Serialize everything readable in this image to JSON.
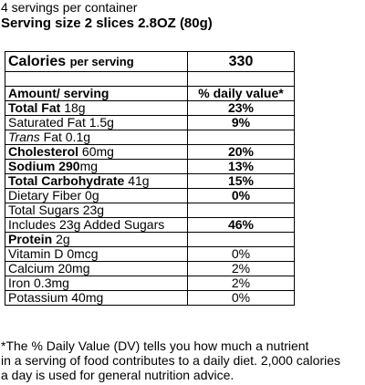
{
  "header": {
    "servings": "4 servings per container",
    "serving_size": "Serving size 2 slices 2.8OZ (80g)"
  },
  "calories": {
    "label": "Calories",
    "unit": "per serving",
    "value": "330"
  },
  "columns": {
    "amount": "Amount/ serving",
    "dv": "% daily value*"
  },
  "rows": [
    {
      "name": "Total Fat",
      "amount": "18g",
      "dv": "23%"
    },
    {
      "name": "Saturated Fat",
      "amount": "1.5g",
      "dv": "9%"
    },
    {
      "name_italic": "Trans",
      "name": "Fat",
      "amount": "0.1g",
      "dv": ""
    },
    {
      "name": "Cholesterol",
      "amount": "60mg",
      "dv": "20%"
    },
    {
      "name": "Sodium 290",
      "amount": "mg",
      "dv": "13%"
    },
    {
      "name": "Total Carbohydrate",
      "amount": "41g",
      "dv": "15%"
    },
    {
      "name": "Dietary Fiber",
      "amount": "0g",
      "dv": "0%"
    },
    {
      "name": "Total Sugars",
      "amount": "23g",
      "dv": ""
    },
    {
      "name": "Includes 23g Added Sugars",
      "amount": "",
      "dv": "46%"
    },
    {
      "name": "Protein",
      "amount": "2g",
      "dv": ""
    },
    {
      "name": "Vitamin D",
      "amount": "0mcg",
      "dv": "0%"
    },
    {
      "name": "Calcium",
      "amount": "20mg",
      "dv": "2%"
    },
    {
      "name": "Iron",
      "amount": "0.3mg",
      "dv": "2%"
    },
    {
      "name": "Potassium",
      "amount": "40mg",
      "dv": "0%"
    }
  ],
  "footnote": {
    "line1": "*The % Daily Value (DV) tells you how much a nutrient",
    "line2": "in a serving of food contributes to a daily diet. 2,000 calories",
    "line3": "a day is used for general nutrition advice."
  }
}
